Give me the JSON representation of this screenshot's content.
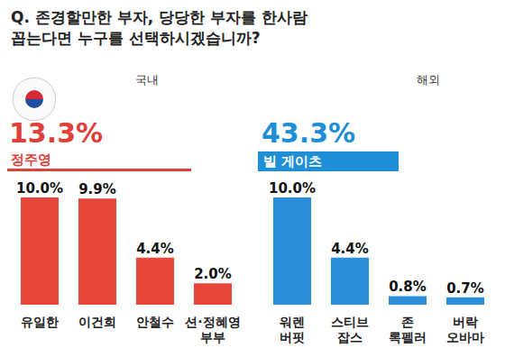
{
  "title": "Q. 존경할만한 부자, 당당한 부자를 한사람 꼽는다면 누구를 선택하시겠습니까?",
  "chart_data": [
    {
      "type": "bar",
      "title": "국내",
      "categories": [
        "유일한",
        "이건희",
        "안철수",
        "션·정혜영 부부"
      ],
      "values": [
        10.0,
        9.9,
        4.4,
        2.0
      ],
      "value_labels": [
        "10.0%",
        "9.9%",
        "4.4%",
        "2.0%"
      ],
      "color": "#e8463a",
      "ylim": [
        0,
        10
      ],
      "data_labels": true,
      "tick_labels": "x",
      "annotations": [
        {
          "text": "정주영",
          "value": 13.3,
          "label": "13.3%"
        }
      ]
    },
    {
      "type": "bar",
      "title": "해외",
      "categories": [
        "워렌 버핏",
        "스티브 잡스",
        "존 록펠러",
        "버락 오바마"
      ],
      "values": [
        10.0,
        4.4,
        0.8,
        0.7
      ],
      "value_labels": [
        "10.0%",
        "4.4%",
        "0.8%",
        "0.7%"
      ],
      "color": "#2a8fd8",
      "ylim": [
        0,
        10
      ],
      "data_labels": true,
      "tick_labels": "x",
      "annotations": [
        {
          "text": "빌 게이츠",
          "value": 43.3,
          "label": "43.3%"
        }
      ]
    }
  ]
}
